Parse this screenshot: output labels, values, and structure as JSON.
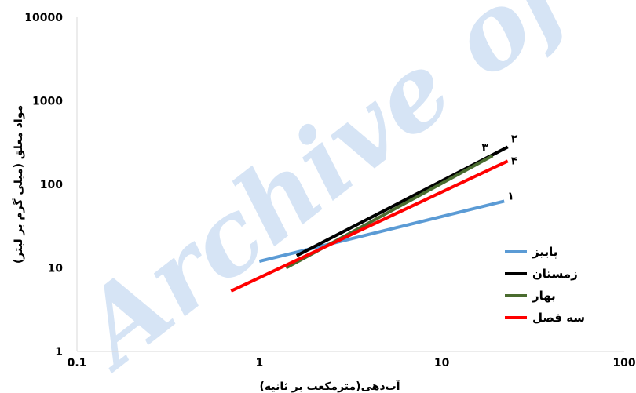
{
  "chart_data": {
    "type": "line",
    "xscale": "log",
    "yscale": "log",
    "xlim": [
      0.1,
      100
    ],
    "ylim": [
      1,
      10000
    ],
    "xticks": [
      0.1,
      1,
      10,
      100
    ],
    "yticks": [
      1,
      10,
      100,
      1000,
      10000
    ],
    "xtick_labels": [
      "0.1",
      "1",
      "10",
      "100"
    ],
    "ytick_labels": [
      "1",
      "10",
      "100",
      "1000",
      "10000"
    ],
    "xlabel": "آب‌دهی(مترمکعب بر ثانیه)",
    "ylabel": "مواد معلق (میلی گرم بر لیتر)",
    "grid": false,
    "legend_position": "right",
    "series": [
      {
        "name": "پاییز",
        "color": "#5b9bd5",
        "end_label": "۱",
        "x": [
          1.0,
          22.0
        ],
        "y": [
          12,
          63
        ]
      },
      {
        "name": "زمستان",
        "color": "#000000",
        "end_label": "۲",
        "x": [
          1.6,
          23.0
        ],
        "y": [
          14,
          280
        ]
      },
      {
        "name": "بهار",
        "color": "#4a6c2f",
        "end_label": "۳",
        "x": [
          1.4,
          19.0
        ],
        "y": [
          10,
          220
        ]
      },
      {
        "name": "سه فصل",
        "color": "#ff0000",
        "end_label": "۴",
        "x": [
          0.7,
          23.0
        ],
        "y": [
          5.3,
          190
        ]
      }
    ]
  },
  "watermark": {
    "text": "Archive of SID",
    "color": "#d6e4f5"
  }
}
